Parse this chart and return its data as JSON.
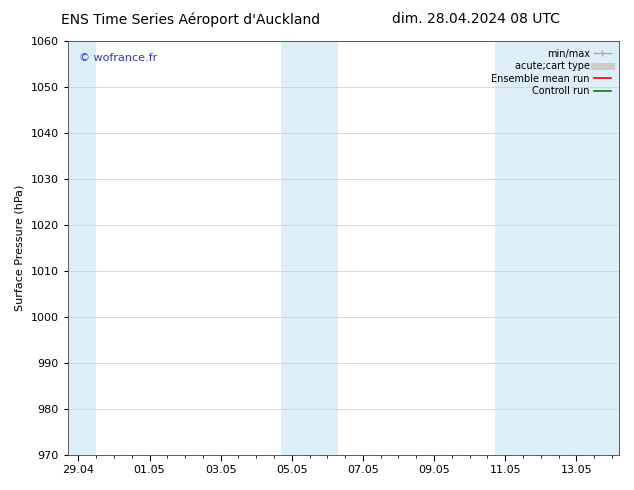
{
  "title_left": "ENS Time Series Aéroport d'Auckland",
  "title_right": "dim. 28.04.2024 08 UTC",
  "ylabel": "Surface Pressure (hPa)",
  "watermark": "© wofrance.fr",
  "watermark_color": "#3333cc",
  "ylim": [
    970,
    1060
  ],
  "yticks": [
    970,
    980,
    990,
    1000,
    1010,
    1020,
    1030,
    1040,
    1050,
    1060
  ],
  "bg_color": "#ffffff",
  "plot_bg_color": "#ffffff",
  "shaded_band_color": "#ddeef8",
  "grid_color": "#cccccc",
  "legend_labels": [
    "min/max",
    "acute;cart type",
    "Ensemble mean run",
    "Controll run"
  ],
  "title_fontsize": 10,
  "tick_fontsize": 8,
  "label_fontsize": 8,
  "watermark_fontsize": 8
}
